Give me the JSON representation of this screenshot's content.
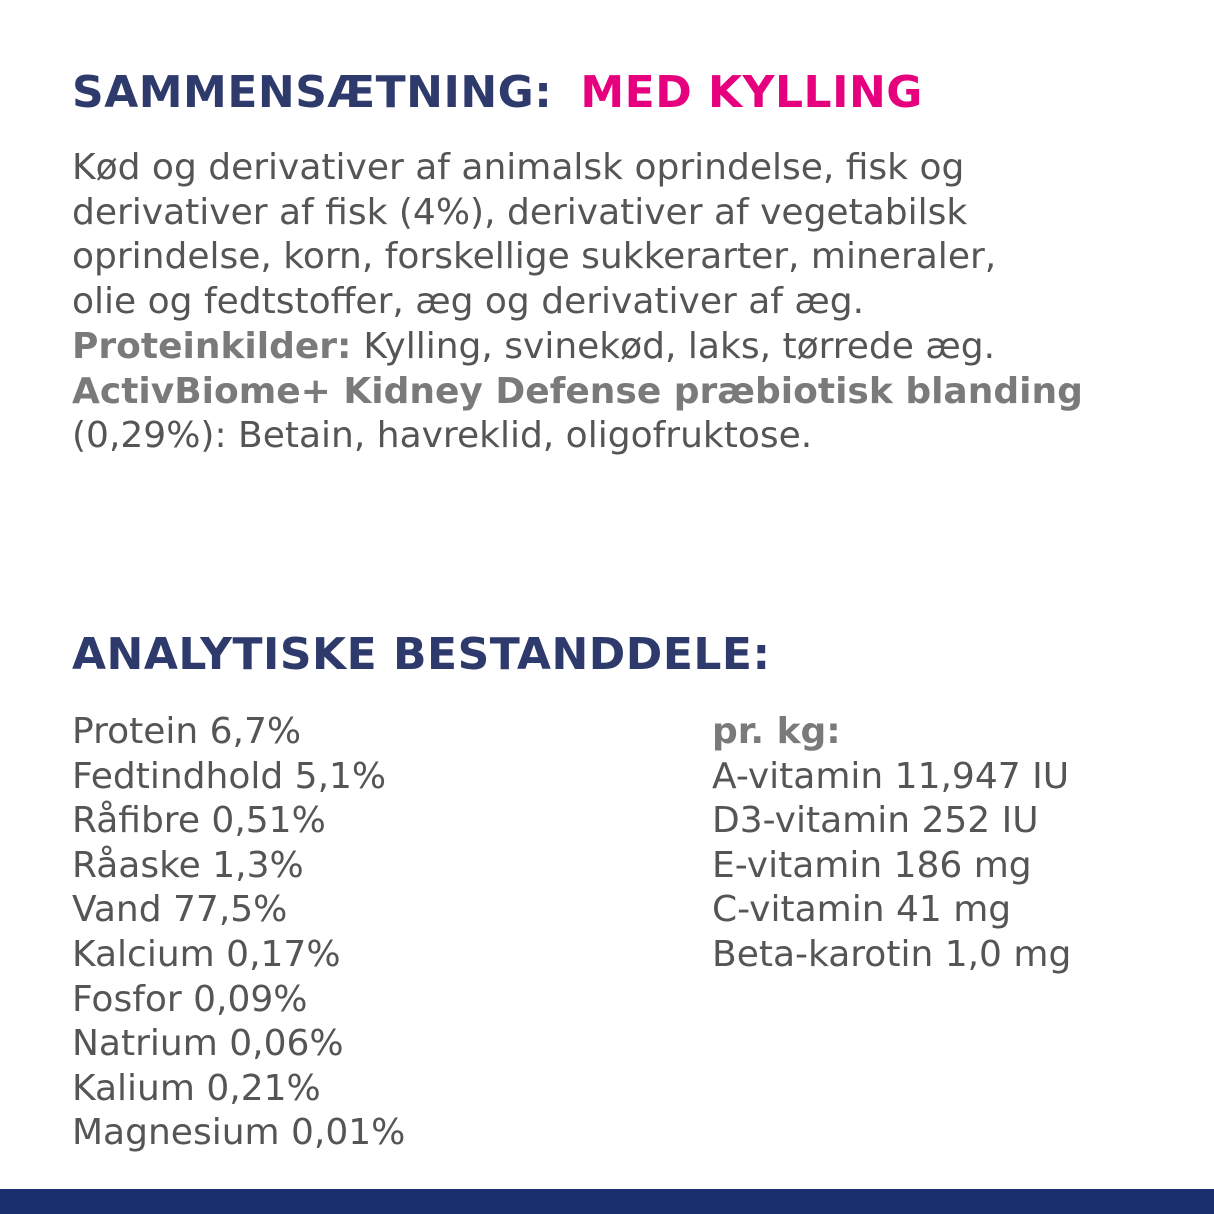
{
  "composition": {
    "title": "SAMMENSÆTNING:",
    "variant": "MED KYLLING",
    "lines": [
      "Kød og derivativer af animalsk oprindelse, fisk og",
      "derivativer af fisk (4%), derivativer af vegetabilsk",
      "oprindelse, korn, forskellige sukkerarter, mineraler,",
      "olie og fedtstoffer, æg og derivativer af æg."
    ],
    "protein_label": "Proteinkilder:",
    "protein_text": "Kylling, svinekød, laks, tørrede æg.",
    "biome_label": "ActivBiome+ Kidney Defense præbiotisk blanding",
    "biome_text": "(0,29%): Betain, havreklid, oligofruktose."
  },
  "analytics": {
    "title": "ANALYTISKE BESTANDDELE:",
    "left": [
      "Protein 6,7%",
      "Fedtindhold 5,1%",
      "Råfibre 0,51%",
      "Råaske 1,3%",
      "Vand 77,5%",
      "Kalcium 0,17%",
      "Fosfor 0,09%",
      "Natrium 0,06%",
      "Kalium 0,21%",
      "Magnesium 0,01%"
    ],
    "right_title": "pr. kg:",
    "right": [
      "A-vitamin 11,947 IU",
      "D3-vitamin 252 IU",
      "E-vitamin 186 mg",
      "C-vitamin 41 mg",
      "Beta-karotin 1,0 mg"
    ]
  }
}
